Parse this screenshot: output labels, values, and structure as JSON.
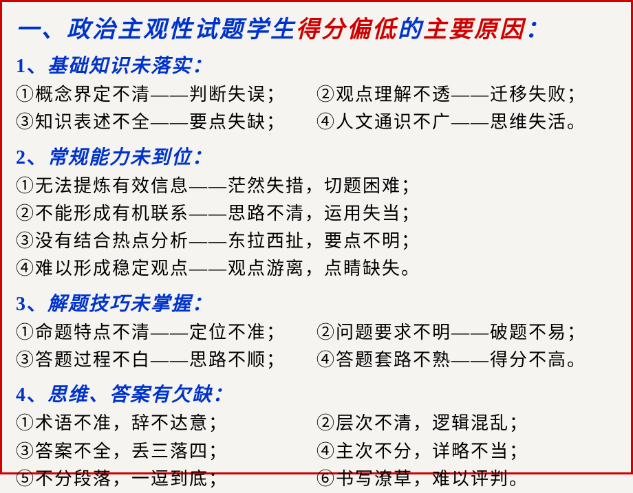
{
  "title": {
    "prefix": "一、",
    "part1": "政治主观性试题学生",
    "part2": "得分偏低",
    "part3": "的",
    "part4": "主要原因",
    "colon": "："
  },
  "sections": [
    {
      "num": "1、",
      "heading": "基础知识未落实：",
      "rows": [
        {
          "left": "①概念界定不清——判断失误；",
          "right": "②观点理解不透——迁移失败；"
        },
        {
          "left": "③知识表述不全——要点失缺；",
          "right": "④人文通识不广——思维失活。"
        }
      ]
    },
    {
      "num": "2、",
      "heading": "常规能力未到位：",
      "lines": [
        "①无法提炼有效信息——茫然失措，切题困难；",
        "②不能形成有机联系——思路不清，运用失当；",
        "③没有结合热点分析——东拉西扯，要点不明；",
        "④难以形成稳定观点——观点游离，点睛缺失。"
      ]
    },
    {
      "num": "3、",
      "heading": "解题技巧未掌握：",
      "rows": [
        {
          "left": "①命题特点不清——定位不准；",
          "right": "②问题要求不明——破题不易；"
        },
        {
          "left": "③答题过程不白——思路不顺；",
          "right": "④答题套路不熟——得分不高。"
        }
      ]
    },
    {
      "num": "4、",
      "heading": "思维、答案有欠缺：",
      "rows": [
        {
          "left": "①术语不准，辞不达意；",
          "right": "②层次不清，逻辑混乱；"
        },
        {
          "left": "③答案不全，丢三落四；",
          "right": "④主次不分，详略不当；"
        },
        {
          "left": "⑤不分段落，一逗到底；",
          "right": "⑥书写潦草，难以评判。"
        }
      ]
    }
  ]
}
